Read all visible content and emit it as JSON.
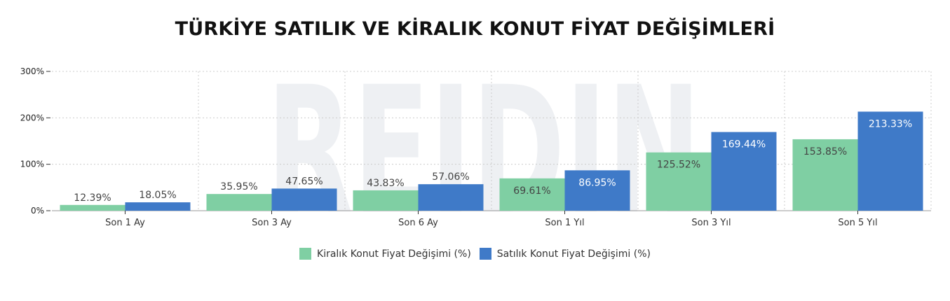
{
  "chart_data": {
    "type": "bar",
    "title": "TÜRKİYE SATILIK VE KİRALIK KONUT FİYAT DEĞİŞİMLERİ",
    "watermark": "REIDIN",
    "categories": [
      "Son 1 Ay",
      "Son 3 Ay",
      "Son 6 Ay",
      "Son 1 Yıl",
      "Son 3 Yıl",
      "Son 5 Yıl"
    ],
    "series": [
      {
        "name": "Kiralık Konut Fiyat Değişimi (%)",
        "color": "#7fcfa3",
        "values": [
          12.39,
          35.95,
          43.83,
          69.61,
          125.52,
          153.85
        ],
        "labels": [
          "12.39%",
          "35.95%",
          "43.83%",
          "69.61%",
          "125.52%",
          "153.85%"
        ]
      },
      {
        "name": "Satılık Konut Fiyat Değişimi (%)",
        "color": "#3f7ac8",
        "values": [
          18.05,
          47.65,
          57.06,
          86.95,
          169.44,
          213.33
        ],
        "labels": [
          "18.05%",
          "47.65%",
          "57.06%",
          "86.95%",
          "169.44%",
          "213.33%"
        ]
      }
    ],
    "yticks": [
      0,
      100,
      200,
      300
    ],
    "ytick_labels": [
      "0%",
      "100%",
      "200%",
      "300%"
    ],
    "ylim": [
      0,
      300
    ],
    "grid": true,
    "legend_position": "bottom-center"
  }
}
